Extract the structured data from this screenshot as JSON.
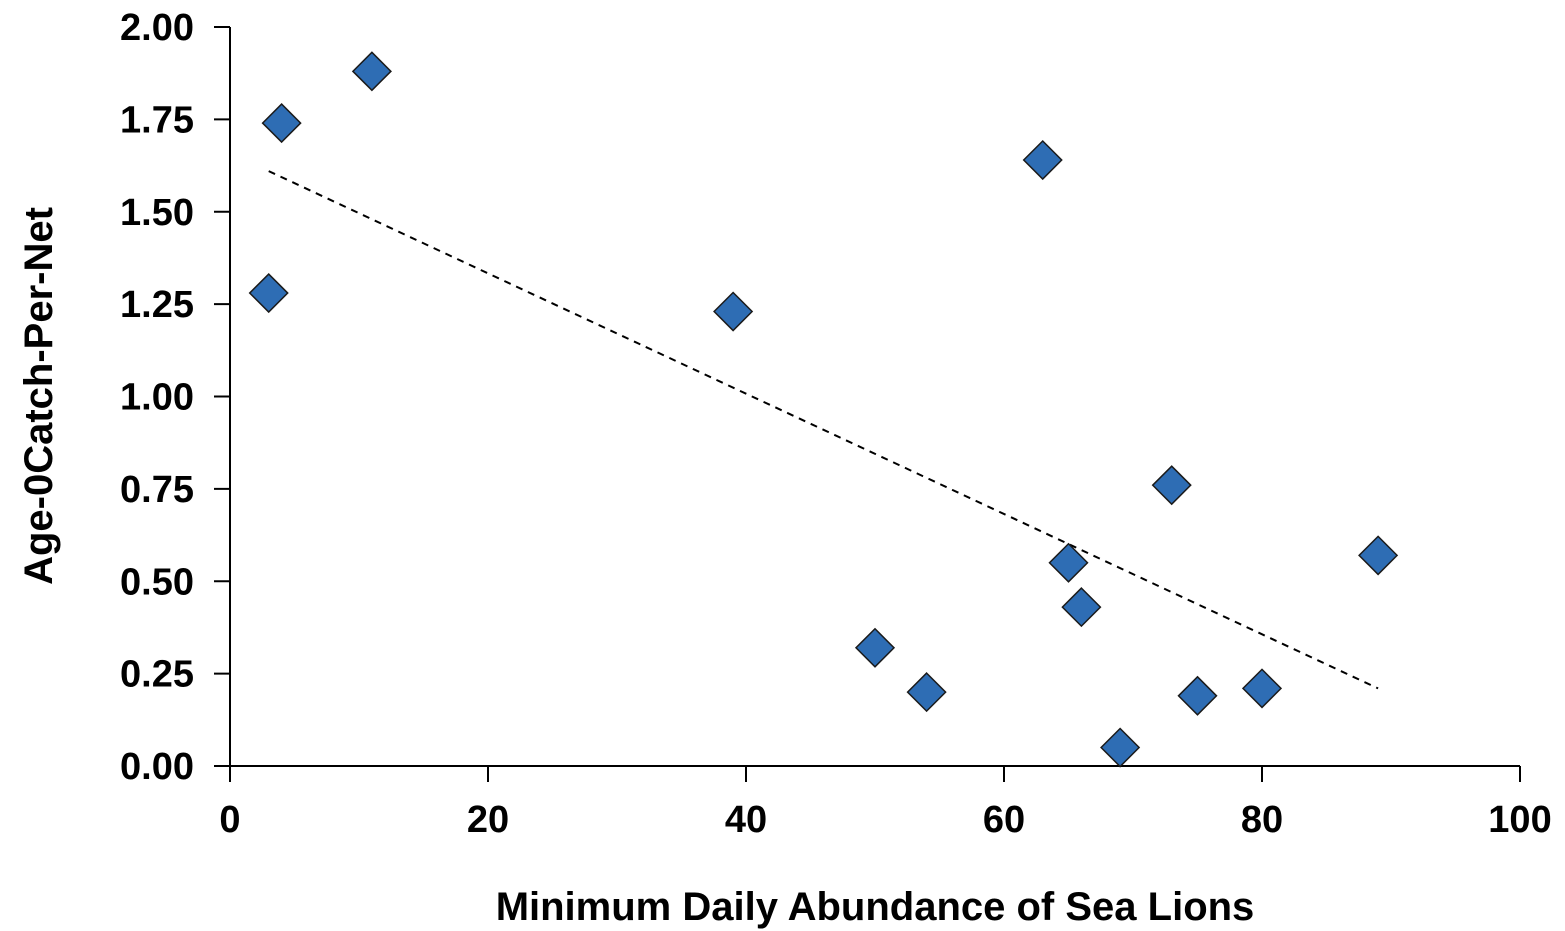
{
  "chart_data": {
    "type": "scatter",
    "title": "",
    "xlabel": "Minimum Daily Abundance of Sea Lions",
    "ylabel": "Age-0Catch-Per-Net",
    "xlim": [
      0,
      100
    ],
    "ylim": [
      0,
      2.0
    ],
    "xticks": [
      0,
      20,
      40,
      60,
      80,
      100
    ],
    "xtick_labels": [
      "0",
      "20",
      "40",
      "60",
      "80",
      "100"
    ],
    "yticks": [
      0,
      0.25,
      0.5,
      0.75,
      1.0,
      1.25,
      1.5,
      1.75,
      2.0
    ],
    "ytick_labels": [
      "0.00",
      "0.25",
      "0.50",
      "0.75",
      "1.00",
      "1.25",
      "1.50",
      "1.75",
      "2.00"
    ],
    "grid": false,
    "series": [
      {
        "marker": "diamond",
        "color": "#2E6DB4",
        "points": [
          {
            "x": 3,
            "y": 1.28
          },
          {
            "x": 4,
            "y": 1.74
          },
          {
            "x": 11,
            "y": 1.88
          },
          {
            "x": 39,
            "y": 1.23
          },
          {
            "x": 50,
            "y": 0.32
          },
          {
            "x": 54,
            "y": 0.2
          },
          {
            "x": 63,
            "y": 1.64
          },
          {
            "x": 65,
            "y": 0.55
          },
          {
            "x": 66,
            "y": 0.43
          },
          {
            "x": 69,
            "y": 0.05
          },
          {
            "x": 73,
            "y": 0.76
          },
          {
            "x": 75,
            "y": 0.19
          },
          {
            "x": 80,
            "y": 0.21
          },
          {
            "x": 89,
            "y": 0.57
          }
        ]
      }
    ],
    "trendline": {
      "style": "dashed",
      "color": "#000000",
      "x": [
        3,
        89
      ],
      "y": [
        1.61,
        0.21
      ]
    }
  }
}
